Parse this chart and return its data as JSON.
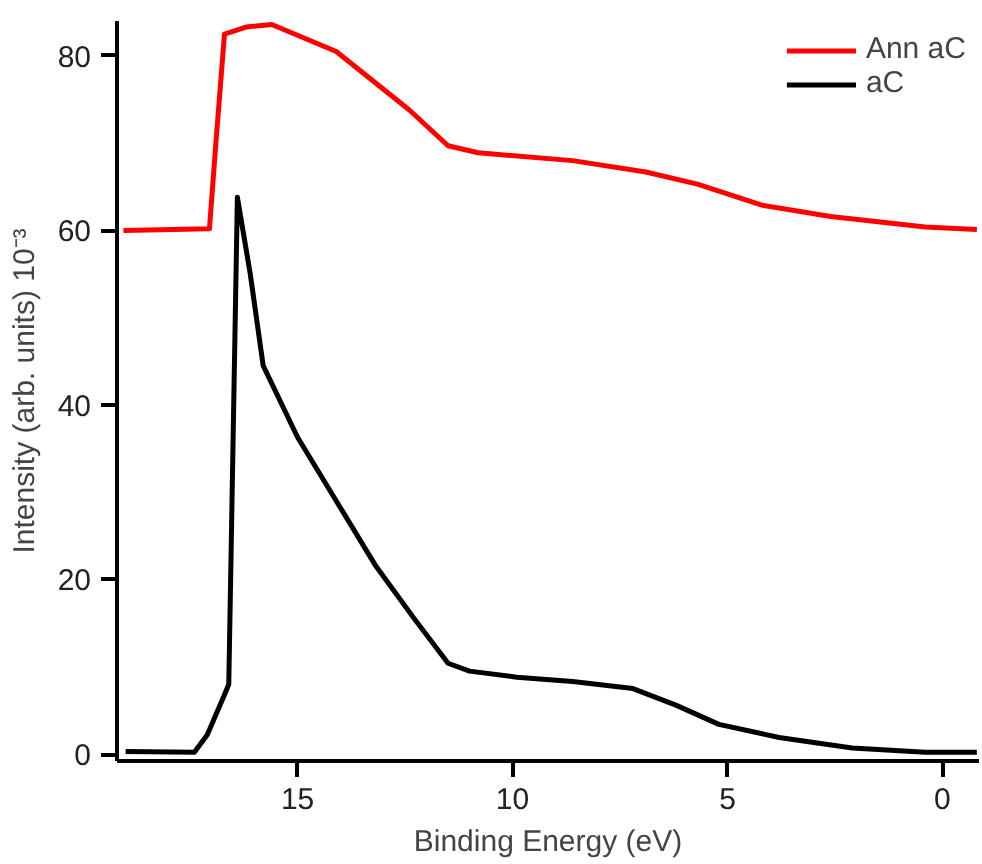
{
  "chart_data": {
    "type": "line",
    "xlabel": "Binding Energy (eV)",
    "ylabel": "Intensity (arb. units) 10⁻³",
    "xlim": [
      19.2,
      -0.85
    ],
    "ylim": [
      -0.8,
      84
    ],
    "xticks": [
      15,
      10,
      5,
      0
    ],
    "yticks": [
      0,
      20,
      40,
      60,
      80
    ],
    "grid": false,
    "legend": "top right",
    "line_style": "solid",
    "marker": "none",
    "series": [
      {
        "name": "Ann aC",
        "color": "#ff0000",
        "x": [
          19.05,
          17.05,
          16.9,
          16.7,
          16.2,
          15.6,
          14.1,
          12.4,
          11.5,
          10.8,
          8.6,
          6.9,
          5.7,
          4.2,
          2.6,
          0.4,
          -0.8
        ],
        "values": [
          60,
          60.2,
          70,
          82.5,
          83.3,
          83.6,
          80.5,
          73.8,
          69.7,
          68.9,
          68.0,
          66.7,
          65.3,
          62.9,
          61.6,
          60.4,
          60.1
        ]
      },
      {
        "name": "aC",
        "color": "#000000",
        "x": [
          19.0,
          17.4,
          17.1,
          16.7,
          16.6,
          16.4,
          16.1,
          15.8,
          15.0,
          14.0,
          13.2,
          12.3,
          11.5,
          11.0,
          9.9,
          8.6,
          7.2,
          6.2,
          5.2,
          3.8,
          2.1,
          0.4,
          -0.8
        ],
        "values": [
          0.3,
          0.2,
          2.2,
          6.8,
          8,
          63.8,
          55,
          44.5,
          36.3,
          28.2,
          21.7,
          15.6,
          10.4,
          9.5,
          8.8,
          8.3,
          7.5,
          5.6,
          3.4,
          1.9,
          0.7,
          0.2,
          0.2
        ]
      }
    ]
  }
}
